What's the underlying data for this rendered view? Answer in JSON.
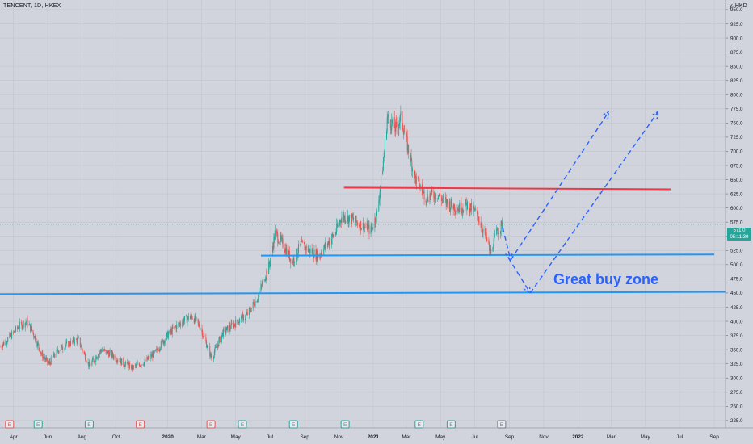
{
  "header": {
    "symbol": "TENCENT, 1D, HKEX",
    "currency": "y, HKD"
  },
  "price_tag": {
    "price": "571.0",
    "countdown": "05:11:39"
  },
  "annotation": {
    "text": "Great buy zone",
    "color": "#2962ff"
  },
  "colors": {
    "background": "#d1d4dc",
    "up": "#26a69a",
    "down": "#ef5350",
    "support": "#2196f3",
    "resistance": "#f23645",
    "arrow": "#2962ff"
  },
  "event_markers": [
    {
      "kind": "E",
      "color": "red",
      "x": "2019-03-25"
    },
    {
      "kind": "E",
      "color": "teal",
      "x": "2019-05-15"
    },
    {
      "kind": "E",
      "color": "teal",
      "x": "2019-08-14"
    },
    {
      "kind": "E",
      "color": "red",
      "x": "2019-11-13"
    },
    {
      "kind": "E",
      "color": "red",
      "x": "2020-03-18"
    },
    {
      "kind": "E",
      "color": "teal",
      "x": "2020-05-13"
    },
    {
      "kind": "E",
      "color": "teal",
      "x": "2020-08-12"
    },
    {
      "kind": "E",
      "color": "teal",
      "x": "2020-11-12"
    },
    {
      "kind": "E",
      "color": "teal",
      "x": "2021-03-24"
    },
    {
      "kind": "E",
      "color": "teal",
      "x": "2021-05-20"
    },
    {
      "kind": "E",
      "color": "gray",
      "x": "2021-08-18"
    }
  ],
  "chart_data": {
    "type": "candlestick",
    "x_axis": {
      "type": "date",
      "range": [
        "2019-03-08",
        "2022-09-21"
      ],
      "ticks": [
        {
          "date": "2019-04-01",
          "label": "Apr"
        },
        {
          "date": "2019-06-01",
          "label": "Jun"
        },
        {
          "date": "2019-08-01",
          "label": "Aug"
        },
        {
          "date": "2019-10-01",
          "label": "Oct"
        },
        {
          "date": "2020-01-01",
          "label": "2020"
        },
        {
          "date": "2020-03-01",
          "label": "Mar"
        },
        {
          "date": "2020-05-01",
          "label": "May"
        },
        {
          "date": "2020-07-01",
          "label": "Jul"
        },
        {
          "date": "2020-09-01",
          "label": "Sep"
        },
        {
          "date": "2020-11-01",
          "label": "Nov"
        },
        {
          "date": "2021-01-01",
          "label": "2021"
        },
        {
          "date": "2021-03-01",
          "label": "Mar"
        },
        {
          "date": "2021-05-01",
          "label": "May"
        },
        {
          "date": "2021-07-01",
          "label": "Jul"
        },
        {
          "date": "2021-09-01",
          "label": "Sep"
        },
        {
          "date": "2021-11-01",
          "label": "Nov"
        },
        {
          "date": "2022-01-01",
          "label": "2022"
        },
        {
          "date": "2022-03-01",
          "label": "Mar"
        },
        {
          "date": "2022-05-01",
          "label": "May"
        },
        {
          "date": "2022-07-01",
          "label": "Jul"
        },
        {
          "date": "2022-09-01",
          "label": "Sep"
        }
      ]
    },
    "y_axis": {
      "range": [
        212,
        967
      ],
      "position": "right",
      "ticks": [
        "225.0",
        "250.0",
        "275.0",
        "300.0",
        "325.0",
        "350.0",
        "375.0",
        "400.0",
        "425.0",
        "450.0",
        "475.0",
        "500.0",
        "525.0",
        "550.0",
        "575.0",
        "600.0",
        "625.0",
        "650.0",
        "675.0",
        "700.0",
        "725.0",
        "750.0",
        "775.0",
        "800.0",
        "825.0",
        "850.0",
        "875.0",
        "900.0",
        "925.0",
        "950.0"
      ]
    },
    "grid": true,
    "price_path": [
      [
        "2019-03-08",
        355
      ],
      [
        "2019-03-25",
        372
      ],
      [
        "2019-04-12",
        392
      ],
      [
        "2019-04-25",
        400
      ],
      [
        "2019-05-08",
        375
      ],
      [
        "2019-05-22",
        340
      ],
      [
        "2019-06-03",
        325
      ],
      [
        "2019-06-20",
        350
      ],
      [
        "2019-07-08",
        360
      ],
      [
        "2019-07-25",
        368
      ],
      [
        "2019-08-14",
        322
      ],
      [
        "2019-09-05",
        350
      ],
      [
        "2019-09-25",
        340
      ],
      [
        "2019-10-15",
        325
      ],
      [
        "2019-10-30",
        318
      ],
      [
        "2019-11-20",
        328
      ],
      [
        "2019-12-10",
        345
      ],
      [
        "2019-12-31",
        375
      ],
      [
        "2020-01-20",
        395
      ],
      [
        "2020-02-12",
        410
      ],
      [
        "2020-02-28",
        390
      ],
      [
        "2020-03-19",
        335
      ],
      [
        "2020-04-08",
        380
      ],
      [
        "2020-04-28",
        395
      ],
      [
        "2020-05-20",
        410
      ],
      [
        "2020-06-08",
        440
      ],
      [
        "2020-06-30",
        500
      ],
      [
        "2020-07-10",
        555
      ],
      [
        "2020-07-25",
        535
      ],
      [
        "2020-08-10",
        505
      ],
      [
        "2020-08-25",
        535
      ],
      [
        "2020-09-10",
        525
      ],
      [
        "2020-09-25",
        515
      ],
      [
        "2020-10-10",
        535
      ],
      [
        "2020-10-25",
        555
      ],
      [
        "2020-11-06",
        585
      ],
      [
        "2020-11-25",
        580
      ],
      [
        "2020-12-10",
        570
      ],
      [
        "2020-12-28",
        560
      ],
      [
        "2021-01-08",
        590
      ],
      [
        "2021-01-20",
        690
      ],
      [
        "2021-01-26",
        760
      ],
      [
        "2021-02-10",
        740
      ],
      [
        "2021-02-20",
        760
      ],
      [
        "2021-03-05",
        700
      ],
      [
        "2021-03-18",
        650
      ],
      [
        "2021-04-05",
        620
      ],
      [
        "2021-04-25",
        625
      ],
      [
        "2021-05-10",
        610
      ],
      [
        "2021-06-01",
        600
      ],
      [
        "2021-06-18",
        605
      ],
      [
        "2021-07-05",
        590
      ],
      [
        "2021-07-22",
        545
      ],
      [
        "2021-07-29",
        520
      ],
      [
        "2021-08-10",
        560
      ],
      [
        "2021-08-20",
        571
      ]
    ],
    "series": [
      {
        "type": "horizontal_line",
        "color": "#f23645",
        "points": [
          [
            "2020-11-10",
            636
          ],
          [
            "2022-06-15",
            633
          ]
        ]
      },
      {
        "type": "horizontal_line",
        "color": "#2196f3",
        "points": [
          [
            "2020-06-15",
            516
          ],
          [
            "2022-09-01",
            518
          ]
        ]
      },
      {
        "type": "horizontal_line",
        "color": "#2196f3",
        "points": [
          [
            "2019-03-08",
            448
          ],
          [
            "2022-09-21",
            452
          ]
        ]
      },
      {
        "type": "dashed_arrow_path",
        "color": "#2962ff",
        "points": [
          [
            "2021-08-20",
            565
          ],
          [
            "2021-09-03",
            508
          ],
          [
            "2022-02-25",
            770
          ]
        ]
      },
      {
        "type": "dashed_arrow_path",
        "color": "#2962ff",
        "points": [
          [
            "2021-08-30",
            512
          ],
          [
            "2021-10-08",
            450
          ],
          [
            "2022-05-24",
            770
          ]
        ]
      }
    ]
  }
}
